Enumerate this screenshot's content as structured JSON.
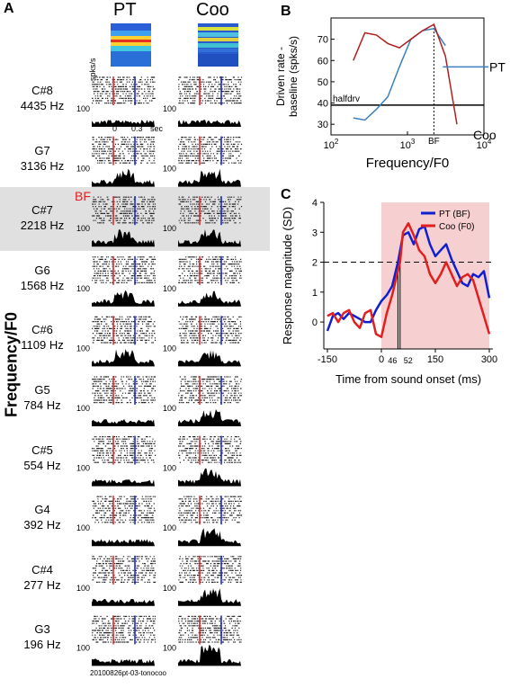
{
  "panels": {
    "a": "A",
    "b": "B",
    "c": "C"
  },
  "panel_a": {
    "col_headers": [
      "PT",
      "Coo"
    ],
    "ylabel": "Frequency/F0",
    "bf_label": "BF",
    "rate_unit": "spks/s",
    "rate_tick": "100",
    "time_ticks": [
      "0",
      "0.3",
      "sec"
    ],
    "footnote": "20100826pt-03-tonocoo",
    "rows": [
      {
        "note": "C#8",
        "freq": "4435 Hz"
      },
      {
        "note": "G7",
        "freq": "3136 Hz"
      },
      {
        "note": "C#7",
        "freq": "2218 Hz"
      },
      {
        "note": "G6",
        "freq": "1568 Hz"
      },
      {
        "note": "C#6",
        "freq": "1109 Hz"
      },
      {
        "note": "G5",
        "freq": "784 Hz"
      },
      {
        "note": "C#5",
        "freq": "554 Hz"
      },
      {
        "note": "G4",
        "freq": "392 Hz"
      },
      {
        "note": "C#4",
        "freq": "277 Hz"
      },
      {
        "note": "G3",
        "freq": "196 Hz"
      }
    ]
  },
  "chart_data": [
    {
      "type": "line",
      "ylabel": "Driven rate - baseline (spks/s)",
      "xlabel": "Frequency/F0",
      "xscale": "log",
      "xlim": [
        100,
        10000
      ],
      "ylim": [
        25,
        80
      ],
      "yticks": [
        30,
        40,
        50,
        60,
        70
      ],
      "xticks": [
        "10^2",
        "10^3",
        "10^4"
      ],
      "threshold": {
        "label": "halfdrv",
        "value": 39
      },
      "bf_marker": {
        "label": "BF",
        "x": 2218
      },
      "series": [
        {
          "name": "PT",
          "color": "#3a7fc0",
          "x": [
            196,
            277,
            392,
            554,
            784,
            1109,
            1568,
            2218,
            3136
          ],
          "y": [
            33,
            32,
            37,
            43,
            57,
            70,
            74,
            75,
            67
          ]
        },
        {
          "name": "Coo",
          "color": "#b02020",
          "x": [
            196,
            277,
            392,
            554,
            784,
            1109,
            1568,
            2218,
            3136,
            4435
          ],
          "y": [
            60,
            73,
            72,
            68,
            66,
            70,
            74,
            77,
            62,
            30
          ]
        }
      ]
    },
    {
      "type": "line",
      "ylabel": "Response magnitude (SD)",
      "xlabel": "Time from sound onset (ms)",
      "xlim": [
        -160,
        310
      ],
      "ylim": [
        -0.9,
        4
      ],
      "yticks": [
        0,
        1,
        2,
        3,
        4
      ],
      "xticks": [
        -150,
        0,
        150,
        300
      ],
      "threshold_line": 2,
      "markers": [
        "46",
        "52"
      ],
      "marker_x": [
        46,
        52
      ],
      "shaded_window": [
        0,
        300
      ],
      "series": [
        {
          "name": "PT (BF)",
          "color": "#1020d0",
          "x": [
            -150,
            -135,
            -120,
            -105,
            -90,
            -75,
            -60,
            -45,
            -30,
            -15,
            0,
            15,
            30,
            46,
            60,
            75,
            90,
            105,
            120,
            135,
            150,
            165,
            180,
            195,
            210,
            225,
            240,
            255,
            270,
            285,
            300
          ],
          "y": [
            -0.3,
            0.2,
            0.3,
            0.1,
            0.3,
            0.2,
            0.1,
            0.0,
            0.0,
            0.4,
            0.7,
            0.9,
            1.2,
            2.0,
            2.9,
            3.0,
            2.6,
            3.1,
            3.2,
            2.6,
            2.2,
            2.4,
            2.6,
            2.1,
            1.7,
            1.3,
            1.2,
            1.6,
            1.5,
            1.7,
            0.8
          ]
        },
        {
          "name": "Coo (F0)",
          "color": "#e02020",
          "x": [
            -150,
            -135,
            -120,
            -105,
            -90,
            -75,
            -60,
            -45,
            -30,
            -15,
            0,
            15,
            30,
            52,
            60,
            75,
            90,
            105,
            120,
            135,
            150,
            165,
            180,
            195,
            210,
            225,
            240,
            255,
            270,
            285,
            300
          ],
          "y": [
            0.2,
            0.3,
            0.0,
            0.3,
            0.4,
            0.0,
            -0.2,
            0.3,
            0.4,
            -0.4,
            -0.5,
            0.3,
            0.9,
            2.0,
            3.0,
            3.3,
            2.9,
            2.4,
            2.2,
            1.6,
            1.3,
            1.6,
            2.0,
            1.6,
            1.2,
            1.5,
            1.6,
            1.4,
            0.8,
            0.2,
            -0.4
          ]
        }
      ]
    }
  ]
}
